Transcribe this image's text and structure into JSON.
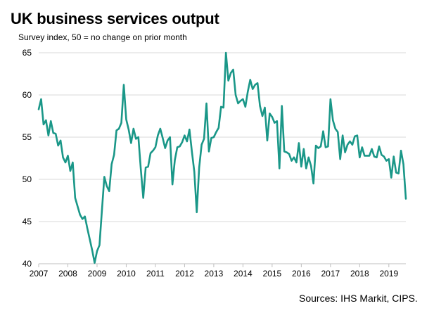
{
  "header": {
    "title": "UK business services output",
    "subtitle": "Survey index, 50 = no change on prior month"
  },
  "footer": {
    "source": "Sources: IHS Markit, CIPS."
  },
  "colors": {
    "line": "#1a9788",
    "grid": "#d9d9d9",
    "axis": "#bfbfbf"
  },
  "chart_data": {
    "type": "line",
    "title": "UK business services output",
    "subtitle": "Survey index, 50 = no change on prior month",
    "xlabel": "",
    "ylabel": "",
    "ylim": [
      40,
      65
    ],
    "xlim": [
      "2007-01",
      "2019-08"
    ],
    "grid": true,
    "y_ticks": [
      "40",
      "45",
      "50",
      "55",
      "60",
      "65"
    ],
    "x_ticks": [
      "2007",
      "2008",
      "2009",
      "2010",
      "2011",
      "2012",
      "2013",
      "2014",
      "2015",
      "2016",
      "2017",
      "2018",
      "2019"
    ],
    "series": [
      {
        "color": "#1a9788",
        "x": [
          "2007-01",
          "2007-02",
          "2007-03",
          "2007-04",
          "2007-05",
          "2007-06",
          "2007-07",
          "2007-08",
          "2007-09",
          "2007-10",
          "2007-11",
          "2007-12",
          "2008-01",
          "2008-02",
          "2008-03",
          "2008-04",
          "2008-05",
          "2008-06",
          "2008-07",
          "2008-08",
          "2008-09",
          "2008-10",
          "2008-11",
          "2008-12",
          "2009-01",
          "2009-02",
          "2009-03",
          "2009-04",
          "2009-05",
          "2009-06",
          "2009-07",
          "2009-08",
          "2009-09",
          "2009-10",
          "2009-11",
          "2009-12",
          "2010-01",
          "2010-02",
          "2010-03",
          "2010-04",
          "2010-05",
          "2010-06",
          "2010-07",
          "2010-08",
          "2010-09",
          "2010-10",
          "2010-11",
          "2010-12",
          "2011-01",
          "2011-02",
          "2011-03",
          "2011-04",
          "2011-05",
          "2011-06",
          "2011-07",
          "2011-08",
          "2011-09",
          "2011-10",
          "2011-11",
          "2011-12",
          "2012-01",
          "2012-02",
          "2012-03",
          "2012-04",
          "2012-05",
          "2012-06",
          "2012-07",
          "2012-08",
          "2012-09",
          "2012-10",
          "2012-11",
          "2012-12",
          "2013-01",
          "2013-02",
          "2013-03",
          "2013-04",
          "2013-05",
          "2013-06",
          "2013-07",
          "2013-08",
          "2013-09",
          "2013-10",
          "2013-11",
          "2013-12",
          "2014-01",
          "2014-02",
          "2014-03",
          "2014-04",
          "2014-05",
          "2014-06",
          "2014-07",
          "2014-08",
          "2014-09",
          "2014-10",
          "2014-11",
          "2014-12",
          "2015-01",
          "2015-02",
          "2015-03",
          "2015-04",
          "2015-05",
          "2015-06",
          "2015-07",
          "2015-08",
          "2015-09",
          "2015-10",
          "2015-11",
          "2015-12",
          "2016-01",
          "2016-02",
          "2016-03",
          "2016-04",
          "2016-05",
          "2016-06",
          "2016-07",
          "2016-08",
          "2016-09",
          "2016-10",
          "2016-11",
          "2016-12",
          "2017-01",
          "2017-02",
          "2017-03",
          "2017-04",
          "2017-05",
          "2017-06",
          "2017-07",
          "2017-08",
          "2017-09",
          "2017-10",
          "2017-11",
          "2017-12",
          "2018-01",
          "2018-02",
          "2018-03",
          "2018-04",
          "2018-05",
          "2018-06",
          "2018-07",
          "2018-08",
          "2018-09",
          "2018-10",
          "2018-11",
          "2018-12",
          "2019-01",
          "2019-02",
          "2019-03",
          "2019-04",
          "2019-05",
          "2019-06",
          "2019-07",
          "2019-08"
        ],
        "values": [
          58.3,
          59.5,
          56.5,
          57.0,
          55.2,
          56.9,
          55.5,
          55.4,
          54.0,
          54.6,
          52.6,
          52.0,
          52.8,
          51.0,
          52.0,
          47.8,
          46.8,
          45.8,
          45.3,
          45.6,
          44.2,
          42.9,
          41.6,
          40.1,
          41.5,
          42.2,
          46.3,
          50.3,
          49.2,
          48.6,
          51.8,
          52.9,
          55.8,
          56.0,
          56.7,
          61.2,
          57.1,
          55.9,
          54.3,
          56.0,
          54.8,
          55.0,
          51.2,
          47.8,
          51.4,
          51.5,
          53.1,
          53.4,
          53.8,
          55.2,
          56.0,
          54.9,
          53.7,
          54.6,
          55.0,
          49.4,
          52.3,
          53.8,
          53.9,
          54.4,
          55.2,
          54.5,
          55.9,
          53.3,
          50.9,
          46.1,
          51.4,
          54.1,
          54.8,
          59.0,
          53.3,
          54.9,
          55.0,
          55.6,
          56.1,
          58.6,
          58.5,
          65.0,
          61.7,
          62.6,
          63.0,
          60.0,
          59.0,
          59.3,
          59.5,
          58.6,
          60.4,
          61.8,
          60.7,
          61.2,
          61.4,
          58.7,
          57.5,
          58.5,
          54.6,
          57.8,
          57.4,
          56.7,
          56.9,
          51.3,
          58.7,
          53.3,
          53.2,
          53.0,
          52.2,
          52.6,
          52.0,
          54.3,
          51.5,
          53.6,
          51.3,
          52.6,
          51.6,
          49.5,
          54.0,
          53.7,
          53.9,
          55.7,
          53.8,
          53.9,
          59.5,
          57.0,
          56.0,
          55.6,
          52.4,
          55.2,
          53.2,
          54.1,
          54.5,
          54.1,
          55.1,
          55.2,
          52.6,
          53.8,
          52.8,
          52.8,
          52.8,
          53.6,
          52.7,
          52.6,
          53.9,
          52.9,
          52.7,
          52.2,
          52.4,
          50.2,
          52.7,
          50.8,
          50.7,
          53.4,
          51.8,
          47.7
        ]
      }
    ]
  }
}
